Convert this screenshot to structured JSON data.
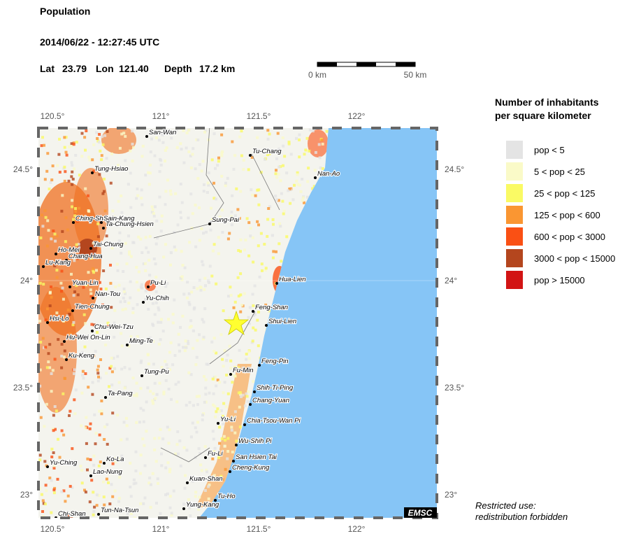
{
  "header": {
    "title": "Population",
    "datetime": "2014/06/22 - 12:27:45 UTC",
    "lat_label": "Lat",
    "lat": "23.79",
    "lon_label": "Lon",
    "lon": "121.40",
    "depth_label": "Depth",
    "depth": "17.2 km"
  },
  "scale": {
    "start": "0 km",
    "end": "50 km"
  },
  "axes": {
    "lon": [
      "120.5°",
      "121°",
      "121.5°",
      "122°"
    ],
    "lat": [
      "24.5°",
      "24°",
      "23.5°",
      "23°"
    ]
  },
  "places": [
    "San-Wan",
    "Tu-Chang",
    "Tung-Hsiao",
    "Nan-Ao",
    "Ching-Shui",
    "Sain-Kang",
    "Ta-Chung-Hsien",
    "Sung-Pai",
    "Ho-Mei",
    "Tai-Chung",
    "Chang-Hua",
    "Lu-Kang",
    "Pu-Li",
    "Hua-Lien",
    "Yuan-Lin",
    "Nan-Tou",
    "Yu-Chih",
    "Feng-Shan",
    "Tien-Chung",
    "Shui-Lien",
    "Hsi-Lo",
    "Chu-Wei-Tzu",
    "Hu-Wei On-Lin",
    "Ming-Te",
    "Ku-Keng",
    "Feng-Pin",
    "Fu-Min",
    "Tung-Pu",
    "Shih-Ti-Ping",
    "Ta-Pang",
    "Chang-Yuan",
    "Yu-Li",
    "Chia-Tsou-Wan Pi",
    "Wu-Shih Pi",
    "Fu-Li",
    "San Hsien Tai",
    "Yu-Ching",
    "Ko-La",
    "Cheng-Kung",
    "Lao-Nung",
    "Kuan-Shan",
    "Tu-Ho",
    "Yung-Kang",
    "Tun-Na-Tsun",
    "Chi-Shan"
  ],
  "logo": "EMSC",
  "legend": {
    "title_line1": "Number of inhabitants",
    "title_line2": "per square kilometer",
    "items": [
      {
        "label": "pop < 5",
        "color": "#e4e4e4"
      },
      {
        "label": "5 < pop < 25",
        "color": "#fafac8"
      },
      {
        "label": "25 < pop < 125",
        "color": "#fafa64"
      },
      {
        "label": "125 < pop < 600",
        "color": "#fa9632"
      },
      {
        "label": "600 < pop < 3000",
        "color": "#fa5014"
      },
      {
        "label": "3000 < pop < 15000",
        "color": "#b4461e"
      },
      {
        "label": "pop > 15000",
        "color": "#d21414"
      }
    ]
  },
  "footer": {
    "line1": "Restricted use:",
    "line2": "redistribution forbidden"
  }
}
